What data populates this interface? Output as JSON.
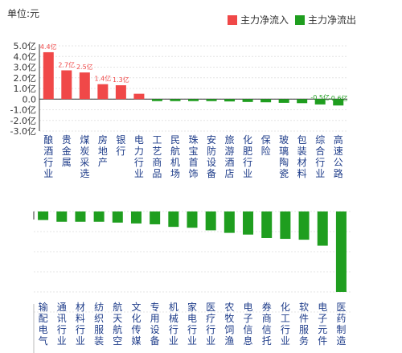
{
  "unit_label": "单位:元",
  "legend": [
    {
      "name": "主力净流入",
      "color": "#f04848"
    },
    {
      "name": "主力净流出",
      "color": "#1f9e1f"
    }
  ],
  "chart_data": [
    {
      "type": "bar",
      "unit": "亿",
      "y_ticks": [
        "5.0亿",
        "4.0亿",
        "3.0亿",
        "2.0亿",
        "1.0亿",
        "0.0",
        "-1.0亿",
        "-2.0亿",
        "-3.0亿"
      ],
      "ylim": [
        -3.0,
        5.0
      ],
      "grid": true,
      "categories": [
        "酿酒行业",
        "贵金属",
        "煤炭采选",
        "房地产",
        "银行",
        "电力行业",
        "工艺商品",
        "民航机场",
        "珠宝首饰",
        "安防设备",
        "旅游酒店",
        "化肥行业",
        "保险",
        "玻璃陶瓷",
        "包装材料",
        "综合行业",
        "高速公路"
      ],
      "values": [
        4.4,
        2.7,
        2.5,
        1.4,
        1.3,
        0.5,
        -0.02,
        -0.15,
        -0.15,
        -0.18,
        -0.22,
        -0.27,
        -0.3,
        -0.35,
        -0.38,
        -0.5,
        -0.6
      ],
      "data_labels": [
        "4.4亿",
        "2.7亿",
        "2.5亿",
        "1.4亿",
        "1.3亿",
        "",
        "",
        "",
        "",
        "",
        "",
        "",
        "",
        "",
        "",
        "-0.5亿",
        "-0.6亿"
      ]
    },
    {
      "type": "bar",
      "grid": true,
      "categories": [
        "输配电气",
        "通讯行业",
        "材料行业",
        "纺织服装",
        "航天航空",
        "文化传媒",
        "专用设备",
        "机械行业",
        "家电行业",
        "医疗行业",
        "农牧饲渔",
        "电子信息",
        "券商信托",
        "化工行业",
        "软件服务",
        "电子元件",
        "医药制造"
      ],
      "values": [
        -0.5,
        -0.6,
        -0.6,
        -0.6,
        -0.65,
        -0.7,
        -0.75,
        -0.9,
        -0.95,
        -1.1,
        -1.25,
        -1.35,
        -1.55,
        -1.6,
        -1.65,
        -2.0,
        -4.7
      ]
    }
  ]
}
